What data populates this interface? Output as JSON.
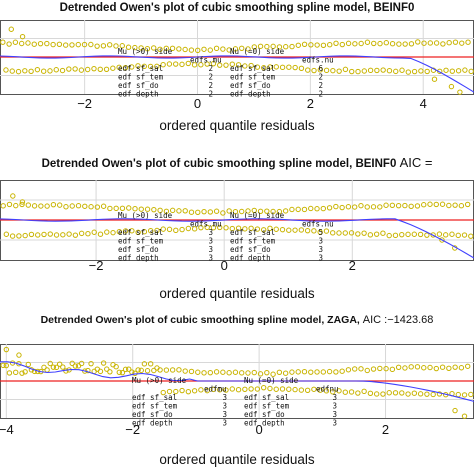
{
  "chart_data": [
    {
      "type": "scatter",
      "title": "Detrended Owen's plot of cubic smoothing spline model, BEINF0",
      "aic_label": "",
      "xlabel": "ordered quantile residuals",
      "x_ticks": [
        "−2",
        "0",
        "2",
        "4"
      ],
      "x_tick_values": [
        -2,
        0,
        2,
        4
      ],
      "xlim": [
        -3.5,
        4.9
      ],
      "ylim": [
        -1,
        1
      ],
      "reference_line_y": 0,
      "grid": true,
      "colors": {
        "points": "#c9b400",
        "smooth": "#4040ff",
        "reference": "#ee2222",
        "grid": "#d8d8d8"
      },
      "table": {
        "left_header": "Mu (>0) side",
        "left_col": "edfs.mu",
        "right_header": "Nu (=0) side",
        "right_col": "edfs.nu",
        "rows": [
          {
            "label": "edf sf_sal",
            "mu": "2",
            "nu_label": "edf sf_sal",
            "nu": "6"
          },
          {
            "label": "edf sf_tem",
            "mu": "2",
            "nu_label": "edf sf_tem",
            "nu": "2"
          },
          {
            "label": "edf sf_do",
            "mu": "2",
            "nu_label": "edf sf_do",
            "nu": "2"
          },
          {
            "label": "edf depth",
            "mu": "2",
            "nu_label": "edf depth",
            "nu": "2"
          }
        ]
      }
    },
    {
      "type": "scatter",
      "title": "Detrended Owen's plot of cubic smoothing spline model, BEINF0",
      "aic_label": "AIC =",
      "xlabel": "ordered quantile residuals",
      "x_ticks": [
        "−2",
        "0",
        "2"
      ],
      "x_tick_values": [
        -2,
        0,
        2
      ],
      "xlim": [
        -3.5,
        3.9
      ],
      "ylim": [
        -1,
        1
      ],
      "reference_line_y": 0,
      "grid": true,
      "colors": {
        "points": "#c9b400",
        "smooth": "#4040ff",
        "reference": "#ee2222",
        "grid": "#d8d8d8"
      },
      "table": {
        "left_header": "Mu (>0) side",
        "left_col": "edfs.mu",
        "right_header": "Nu (=0) side",
        "right_col": "edfs.nu",
        "rows": [
          {
            "label": "edf sf_sal",
            "mu": "3",
            "nu_label": "edf sf_sal",
            "nu": "5"
          },
          {
            "label": "edf sf_tem",
            "mu": "3",
            "nu_label": "edf sf_tem",
            "nu": "3"
          },
          {
            "label": "edf sf_do",
            "mu": "3",
            "nu_label": "edf sf_do",
            "nu": "3"
          },
          {
            "label": "edf depth",
            "mu": "3",
            "nu_label": "edf depth",
            "nu": "3"
          }
        ]
      }
    },
    {
      "type": "scatter",
      "title": "Detrended Owen's plot of cubic smoothing spline model, ZAGA,",
      "aic_label": "AIC :−1423.68",
      "xlabel": "ordered quantile residuals",
      "x_ticks": [
        "−4",
        "−2",
        "0",
        "2"
      ],
      "x_tick_values": [
        -4,
        -2,
        0,
        2
      ],
      "xlim": [
        -4.1,
        3.4
      ],
      "ylim": [
        -1,
        1
      ],
      "reference_line_y": 0,
      "grid": true,
      "colors": {
        "points": "#c9b400",
        "smooth": "#4040ff",
        "reference": "#ee2222",
        "grid": "#d8d8d8"
      },
      "table": {
        "left_header": "Mu (>0) side",
        "left_col": "edfmu",
        "right_header": "Nu (=0) side",
        "right_col": "edfnu",
        "rows": [
          {
            "label": "edf sf_sal",
            "mu": "3",
            "nu_label": "edf sf_sal",
            "nu": "3"
          },
          {
            "label": "edf sf_tem",
            "mu": "3",
            "nu_label": "edf sf_tem",
            "nu": "3"
          },
          {
            "label": "edf sf_do",
            "mu": "3",
            "nu_label": "edf sf_do",
            "nu": "3"
          },
          {
            "label": "edf depth",
            "mu": "3",
            "nu_label": "edf depth",
            "nu": "3"
          }
        ]
      }
    }
  ]
}
